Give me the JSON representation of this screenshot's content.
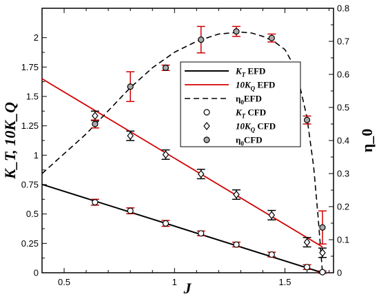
{
  "chart_data": {
    "type": "line",
    "xlabel": "J",
    "ylabel": "K_T, 10K_Q",
    "y2label": "η_0",
    "xlim": [
      0.4,
      1.72
    ],
    "ylim": [
      0,
      2.25
    ],
    "y2lim": [
      0,
      0.8
    ],
    "xticks": [
      "0.5",
      "1",
      "1.5"
    ],
    "yticks": [
      "0",
      "0.25",
      "0.5",
      "0.75",
      "1",
      "1.25",
      "1.5",
      "1.75",
      "2"
    ],
    "y2ticks": [
      "0",
      "0.1",
      "0.2",
      "0.3",
      "0.4",
      "0.5",
      "0.6",
      "0.7",
      "0.8"
    ],
    "legend_position": "center-right",
    "grid": false,
    "colors": {
      "kt": "#000000",
      "kq": "#d40000",
      "eta": "#000000",
      "bar_red": "#cc0000",
      "marker_fill": "#aaaaaa"
    },
    "legend": [
      {
        "main": "K",
        "sub": "T",
        "rest": " EFD",
        "style": "kt_line"
      },
      {
        "main": "10K",
        "sub": "Q",
        "rest": " EFD",
        "style": "kq_line"
      },
      {
        "main": "η",
        "sub": "0",
        "rest": "EFD",
        "style": "eta_line"
      },
      {
        "main": "K",
        "sub": "T",
        "rest": " CFD",
        "style": "kt_marker"
      },
      {
        "main": "10K",
        "sub": "Q",
        "rest": " CFD",
        "style": "kq_marker"
      },
      {
        "main": "η",
        "sub": "0",
        "rest": "CFD",
        "style": "eta_marker"
      }
    ],
    "series": [
      {
        "name": "K_T EFD",
        "kind": "line",
        "axis": "left",
        "x": [
          0.4,
          1.67
        ],
        "y": [
          0.752,
          0.0
        ]
      },
      {
        "name": "10K_Q EFD",
        "kind": "line",
        "axis": "left",
        "x": [
          0.4,
          1.67
        ],
        "y": [
          1.65,
          0.22
        ]
      },
      {
        "name": "η_0 EFD",
        "kind": "line",
        "axis": "right",
        "x": [
          0.4,
          0.5,
          0.6,
          0.7,
          0.8,
          0.9,
          1.0,
          1.1,
          1.2,
          1.3,
          1.35,
          1.4,
          1.45,
          1.5,
          1.55,
          1.6,
          1.63,
          1.65,
          1.67
        ],
        "y": [
          0.3,
          0.36,
          0.42,
          0.49,
          0.56,
          0.62,
          0.667,
          0.7,
          0.722,
          0.728,
          0.725,
          0.715,
          0.7,
          0.675,
          0.615,
          0.47,
          0.32,
          0.17,
          0.0
        ]
      },
      {
        "name": "K_T CFD",
        "kind": "marker",
        "marker": "circle",
        "axis": "left",
        "x": [
          0.64,
          0.8,
          0.96,
          1.12,
          1.28,
          1.44,
          1.6,
          1.67
        ],
        "y": [
          0.6,
          0.527,
          0.42,
          0.335,
          0.24,
          0.155,
          0.048,
          0.005
        ],
        "err": [
          0.025,
          0.025,
          0.025,
          0.02,
          0.02,
          0.02,
          0.02,
          0.01
        ],
        "err_color": "red"
      },
      {
        "name": "10K_Q CFD",
        "kind": "marker",
        "marker": "diamond",
        "axis": "left",
        "x": [
          0.64,
          0.8,
          0.96,
          1.12,
          1.28,
          1.44,
          1.6,
          1.67
        ],
        "y": [
          1.335,
          1.165,
          1.005,
          0.84,
          0.665,
          0.49,
          0.26,
          0.17
        ],
        "err": [
          0.04,
          0.04,
          0.04,
          0.04,
          0.04,
          0.04,
          0.04,
          0.04
        ],
        "err_color": "black"
      },
      {
        "name": "η_0 CFD",
        "kind": "marker",
        "marker": "filled-circle",
        "axis": "right",
        "x": [
          0.64,
          0.8,
          0.96,
          1.12,
          1.28,
          1.44,
          1.6,
          1.67
        ],
        "y": [
          0.45,
          0.563,
          0.62,
          0.705,
          0.73,
          0.71,
          0.462,
          0.137
        ],
        "err": [
          0.012,
          0.045,
          0.008,
          0.04,
          0.015,
          0.012,
          0.012,
          0.05
        ],
        "err_color": "red"
      }
    ]
  }
}
